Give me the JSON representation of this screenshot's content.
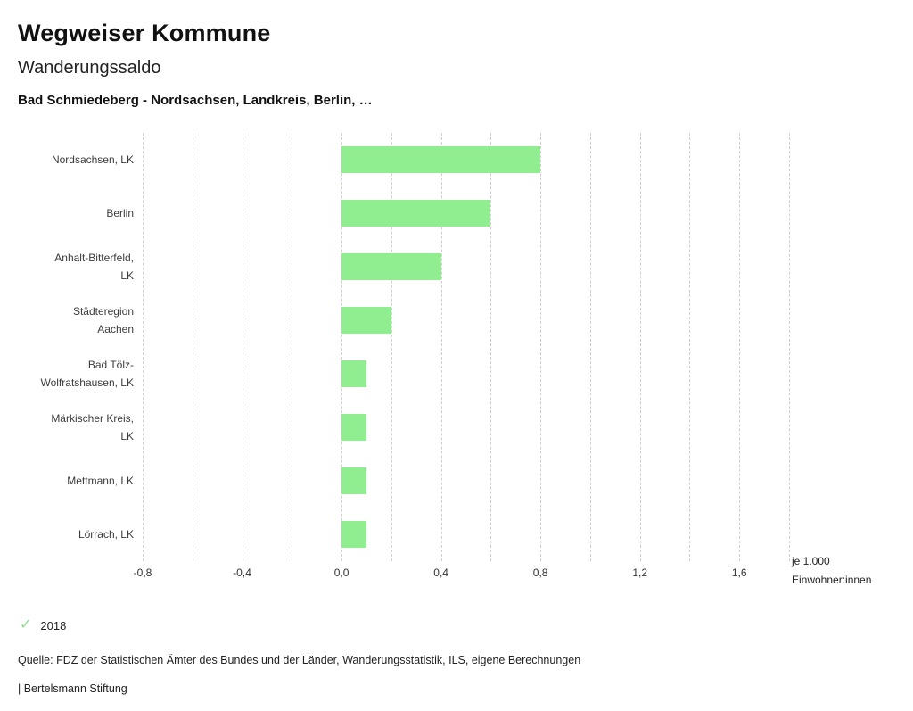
{
  "header": {
    "title": "Wegweiser Kommune",
    "subtitle": "Wanderungssaldo",
    "chart_subtitle": "Bad Schmiedeberg - Nordsachsen, Landkreis, Berlin, …"
  },
  "chart_data": {
    "type": "bar",
    "orientation": "horizontal",
    "categories": [
      "Nordsachsen, LK",
      "Berlin",
      "Anhalt-Bitterfeld, LK",
      "Städteregion Aachen",
      "Bad Tölz-Wolfratshausen, LK",
      "Märkischer Kreis, LK",
      "Mettmann, LK",
      "Lörrach, LK"
    ],
    "values": [
      0.8,
      0.6,
      0.4,
      0.2,
      0.1,
      0.1,
      0.1,
      0.1
    ],
    "series_name": "2018",
    "xlim": [
      -0.8,
      1.8
    ],
    "grid_step": 0.2,
    "grid": "dashed-vertical",
    "x_ticks": [
      -0.8,
      -0.4,
      0.0,
      0.4,
      0.8,
      1.2,
      1.6
    ],
    "x_tick_labels": [
      "-0,8",
      "-0,4",
      "0,0",
      "0,4",
      "0,8",
      "1,2",
      "1,6"
    ],
    "bar_color": "#90ee90",
    "unit_label_line1": "je 1.000",
    "unit_label_line2": "Einwohner:innen"
  },
  "legend": {
    "year": "2018",
    "check_icon": "check-icon",
    "check_color": "#8fe08f"
  },
  "footer": {
    "source": "Quelle: FDZ der Statistischen Ämter des Bundes und der Länder, Wanderungsstatistik, ILS, eigene Berechnungen",
    "branding": "| Bertelsmann Stiftung"
  }
}
